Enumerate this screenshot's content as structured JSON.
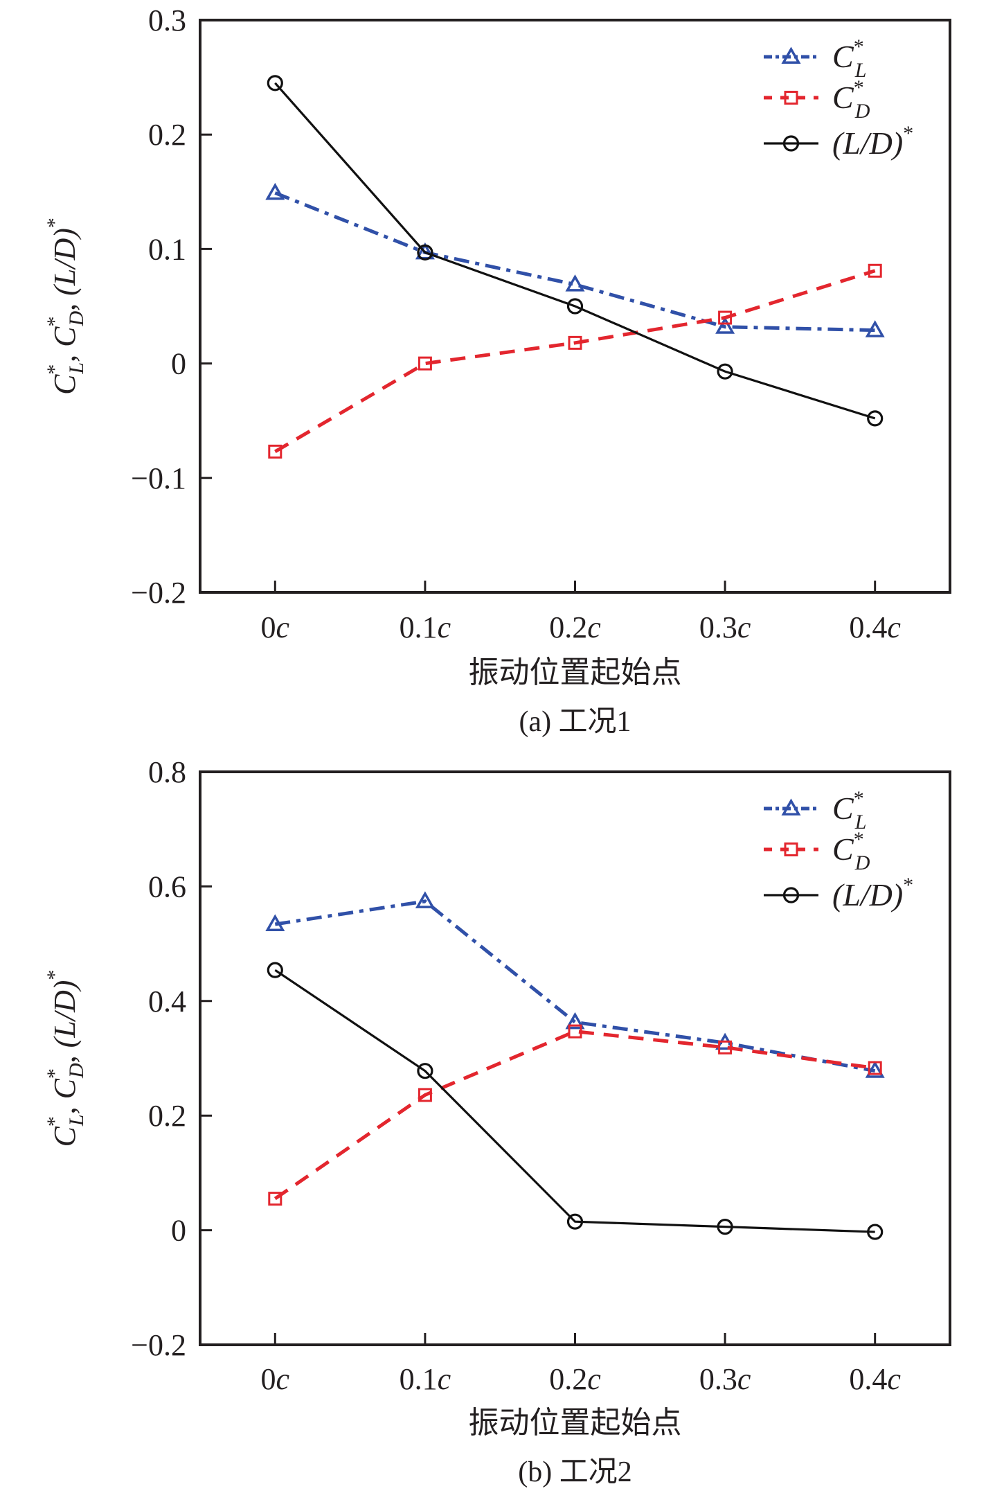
{
  "figure": {
    "colors": {
      "axis": "#231f20",
      "CL": "#3050a8",
      "CD": "#e3262e",
      "LD": "#111111"
    }
  },
  "chart_data": [
    {
      "id": "a",
      "type": "line",
      "caption": "(a) 工况1",
      "xlabel": "振动位置起始点",
      "ylabel": "C*_L, C*_D, (L/D)*",
      "ylabel_parts": {
        "cl": "C",
        "cl_sub": "L",
        "cd": "C",
        "cd_sub": "D",
        "ld": "(L/D)",
        "star": "*",
        "sep": ","
      },
      "categories": [
        "0c",
        "0.1c",
        "0.2c",
        "0.3c",
        "0.4c"
      ],
      "x": [
        0,
        0.1,
        0.2,
        0.3,
        0.4
      ],
      "xlim": [
        -0.05,
        0.45
      ],
      "ylim": [
        -0.2,
        0.3
      ],
      "yticks": [
        -0.2,
        -0.1,
        0,
        0.1,
        0.2,
        0.3
      ],
      "ytick_labels": [
        "−0.2",
        "−0.1",
        "0",
        "0.1",
        "0.2",
        "0.3"
      ],
      "grid": false,
      "legend_position": "top-right",
      "series": [
        {
          "key": "CL",
          "name": "C*_L",
          "label_main": "C",
          "label_sub": "L",
          "marker": "triangle",
          "line": "dash-dot",
          "values": [
            0.149,
            0.097,
            0.069,
            0.032,
            0.029
          ]
        },
        {
          "key": "CD",
          "name": "C*_D",
          "label_main": "C",
          "label_sub": "D",
          "marker": "square",
          "line": "dashed",
          "values": [
            -0.077,
            0.0,
            0.018,
            0.04,
            0.081
          ]
        },
        {
          "key": "LD",
          "name": "(L/D)*",
          "label_main": "(L/D)",
          "label_sub": "",
          "marker": "circle",
          "line": "solid",
          "values": [
            0.245,
            0.097,
            0.05,
            -0.007,
            -0.048
          ]
        }
      ]
    },
    {
      "id": "b",
      "type": "line",
      "caption": "(b) 工况2",
      "xlabel": "振动位置起始点",
      "ylabel": "C*_L, C*_D, (L/D)*",
      "ylabel_parts": {
        "cl": "C",
        "cl_sub": "L",
        "cd": "C",
        "cd_sub": "D",
        "ld": "(L/D)",
        "star": "*",
        "sep": ","
      },
      "categories": [
        "0c",
        "0.1c",
        "0.2c",
        "0.3c",
        "0.4c"
      ],
      "x": [
        0,
        0.1,
        0.2,
        0.3,
        0.4
      ],
      "xlim": [
        -0.05,
        0.45
      ],
      "ylim": [
        -0.2,
        0.8
      ],
      "yticks": [
        -0.2,
        0,
        0.2,
        0.4,
        0.6,
        0.8
      ],
      "ytick_labels": [
        "−0.2",
        "0",
        "0.2",
        "0.4",
        "0.6",
        "0.8"
      ],
      "grid": false,
      "legend_position": "top-right",
      "series": [
        {
          "key": "CL",
          "name": "C*_L",
          "label_main": "C",
          "label_sub": "L",
          "marker": "triangle",
          "line": "dash-dot",
          "values": [
            0.534,
            0.574,
            0.363,
            0.327,
            0.278
          ]
        },
        {
          "key": "CD",
          "name": "C*_D",
          "label_main": "C",
          "label_sub": "D",
          "marker": "square",
          "line": "dashed",
          "values": [
            0.055,
            0.236,
            0.347,
            0.319,
            0.283
          ]
        },
        {
          "key": "LD",
          "name": "(L/D)*",
          "label_main": "(L/D)",
          "label_sub": "",
          "marker": "circle",
          "line": "solid",
          "values": [
            0.454,
            0.278,
            0.015,
            0.006,
            -0.003
          ]
        }
      ]
    }
  ]
}
